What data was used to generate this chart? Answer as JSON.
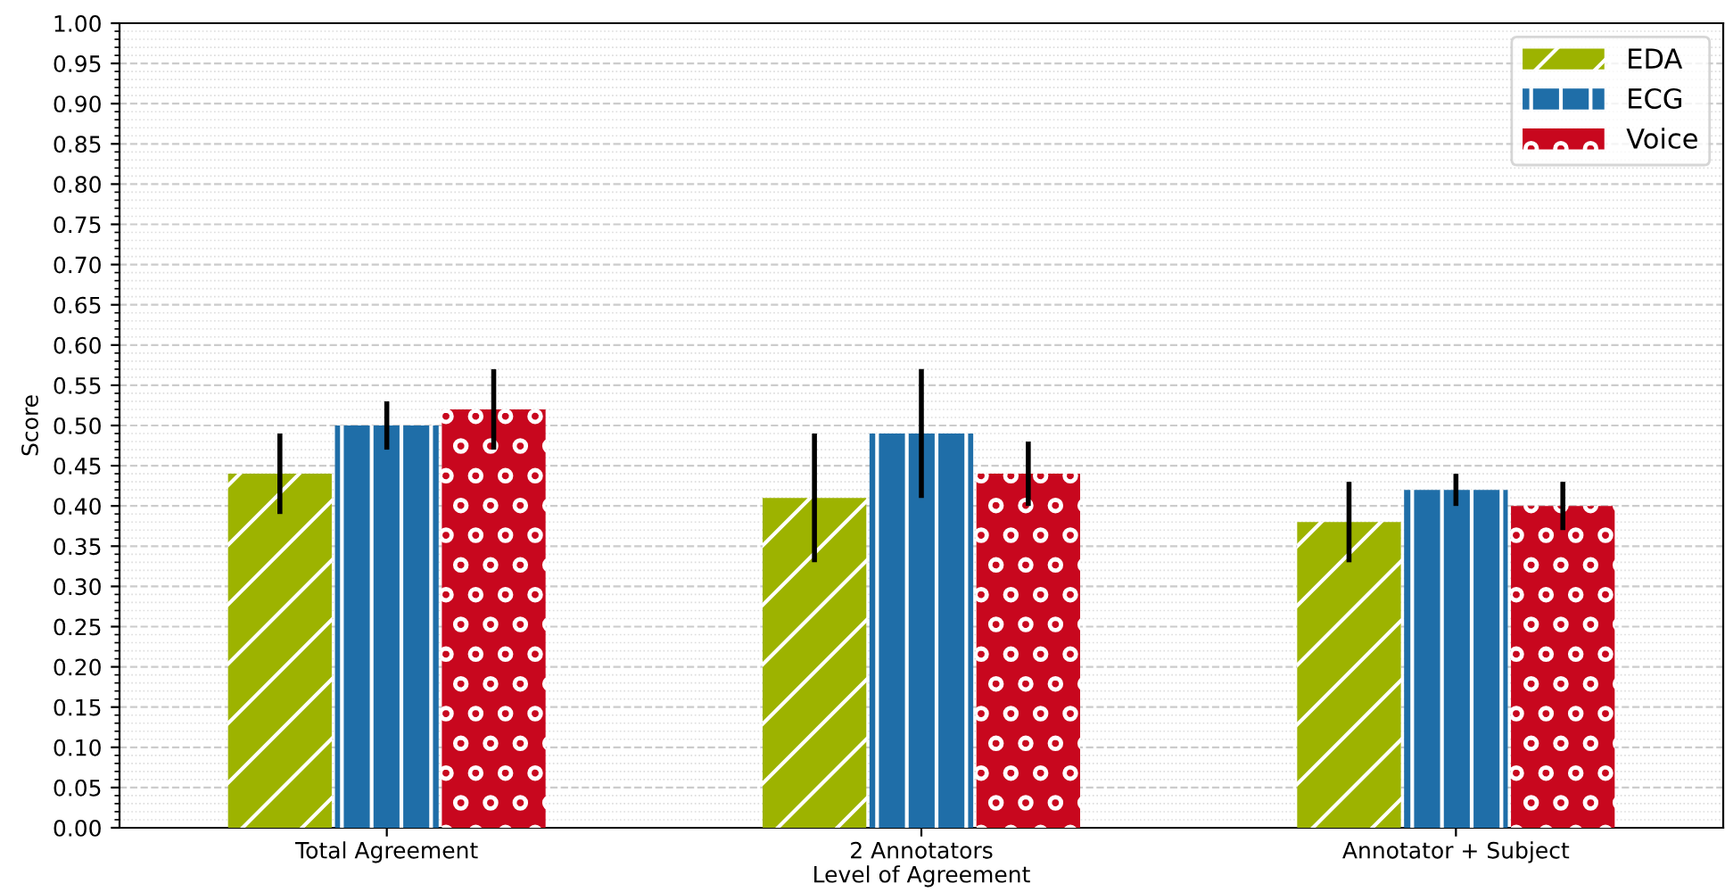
{
  "chart_data": {
    "type": "bar",
    "xlabel": "Level of Agreement",
    "ylabel": "Score",
    "categories": [
      "Total Agreement",
      "2 Annotators",
      "Annotator + Subject"
    ],
    "series": [
      {
        "name": "EDA",
        "color": "#9db300",
        "values": [
          0.44,
          0.41,
          0.38
        ],
        "errors": [
          0.05,
          0.08,
          0.05
        ]
      },
      {
        "name": "ECG",
        "color": "#1f6ea8",
        "values": [
          0.5,
          0.49,
          0.42
        ],
        "errors": [
          0.03,
          0.08,
          0.02
        ]
      },
      {
        "name": "Voice",
        "color": "#c8071e",
        "values": [
          0.52,
          0.44,
          0.4
        ],
        "errors": [
          0.05,
          0.04,
          0.03
        ]
      }
    ],
    "ylim": [
      0,
      1
    ],
    "yticks": [
      {
        "value": 0,
        "label": "0.00"
      },
      {
        "value": 0.05,
        "label": "0.05"
      },
      {
        "value": 0.1,
        "label": "0.10"
      },
      {
        "value": 0.15,
        "label": "0.15"
      },
      {
        "value": 0.2,
        "label": "0.20"
      },
      {
        "value": 0.25,
        "label": "0.25"
      },
      {
        "value": 0.3,
        "label": "0.30"
      },
      {
        "value": 0.35,
        "label": "0.35"
      },
      {
        "value": 0.4,
        "label": "0.40"
      },
      {
        "value": 0.45,
        "label": "0.45"
      },
      {
        "value": 0.5,
        "label": "0.50"
      },
      {
        "value": 0.55,
        "label": "0.55"
      },
      {
        "value": 0.6,
        "label": "0.60"
      },
      {
        "value": 0.65,
        "label": "0.65"
      },
      {
        "value": 0.7,
        "label": "0.70"
      },
      {
        "value": 0.75,
        "label": "0.75"
      },
      {
        "value": 0.8,
        "label": "0.80"
      },
      {
        "value": 0.85,
        "label": "0.85"
      },
      {
        "value": 0.9,
        "label": "0.90"
      },
      {
        "value": 0.95,
        "label": "0.95"
      },
      {
        "value": 1,
        "label": "1.00"
      }
    ],
    "grid": "y",
    "legend": "top right"
  }
}
